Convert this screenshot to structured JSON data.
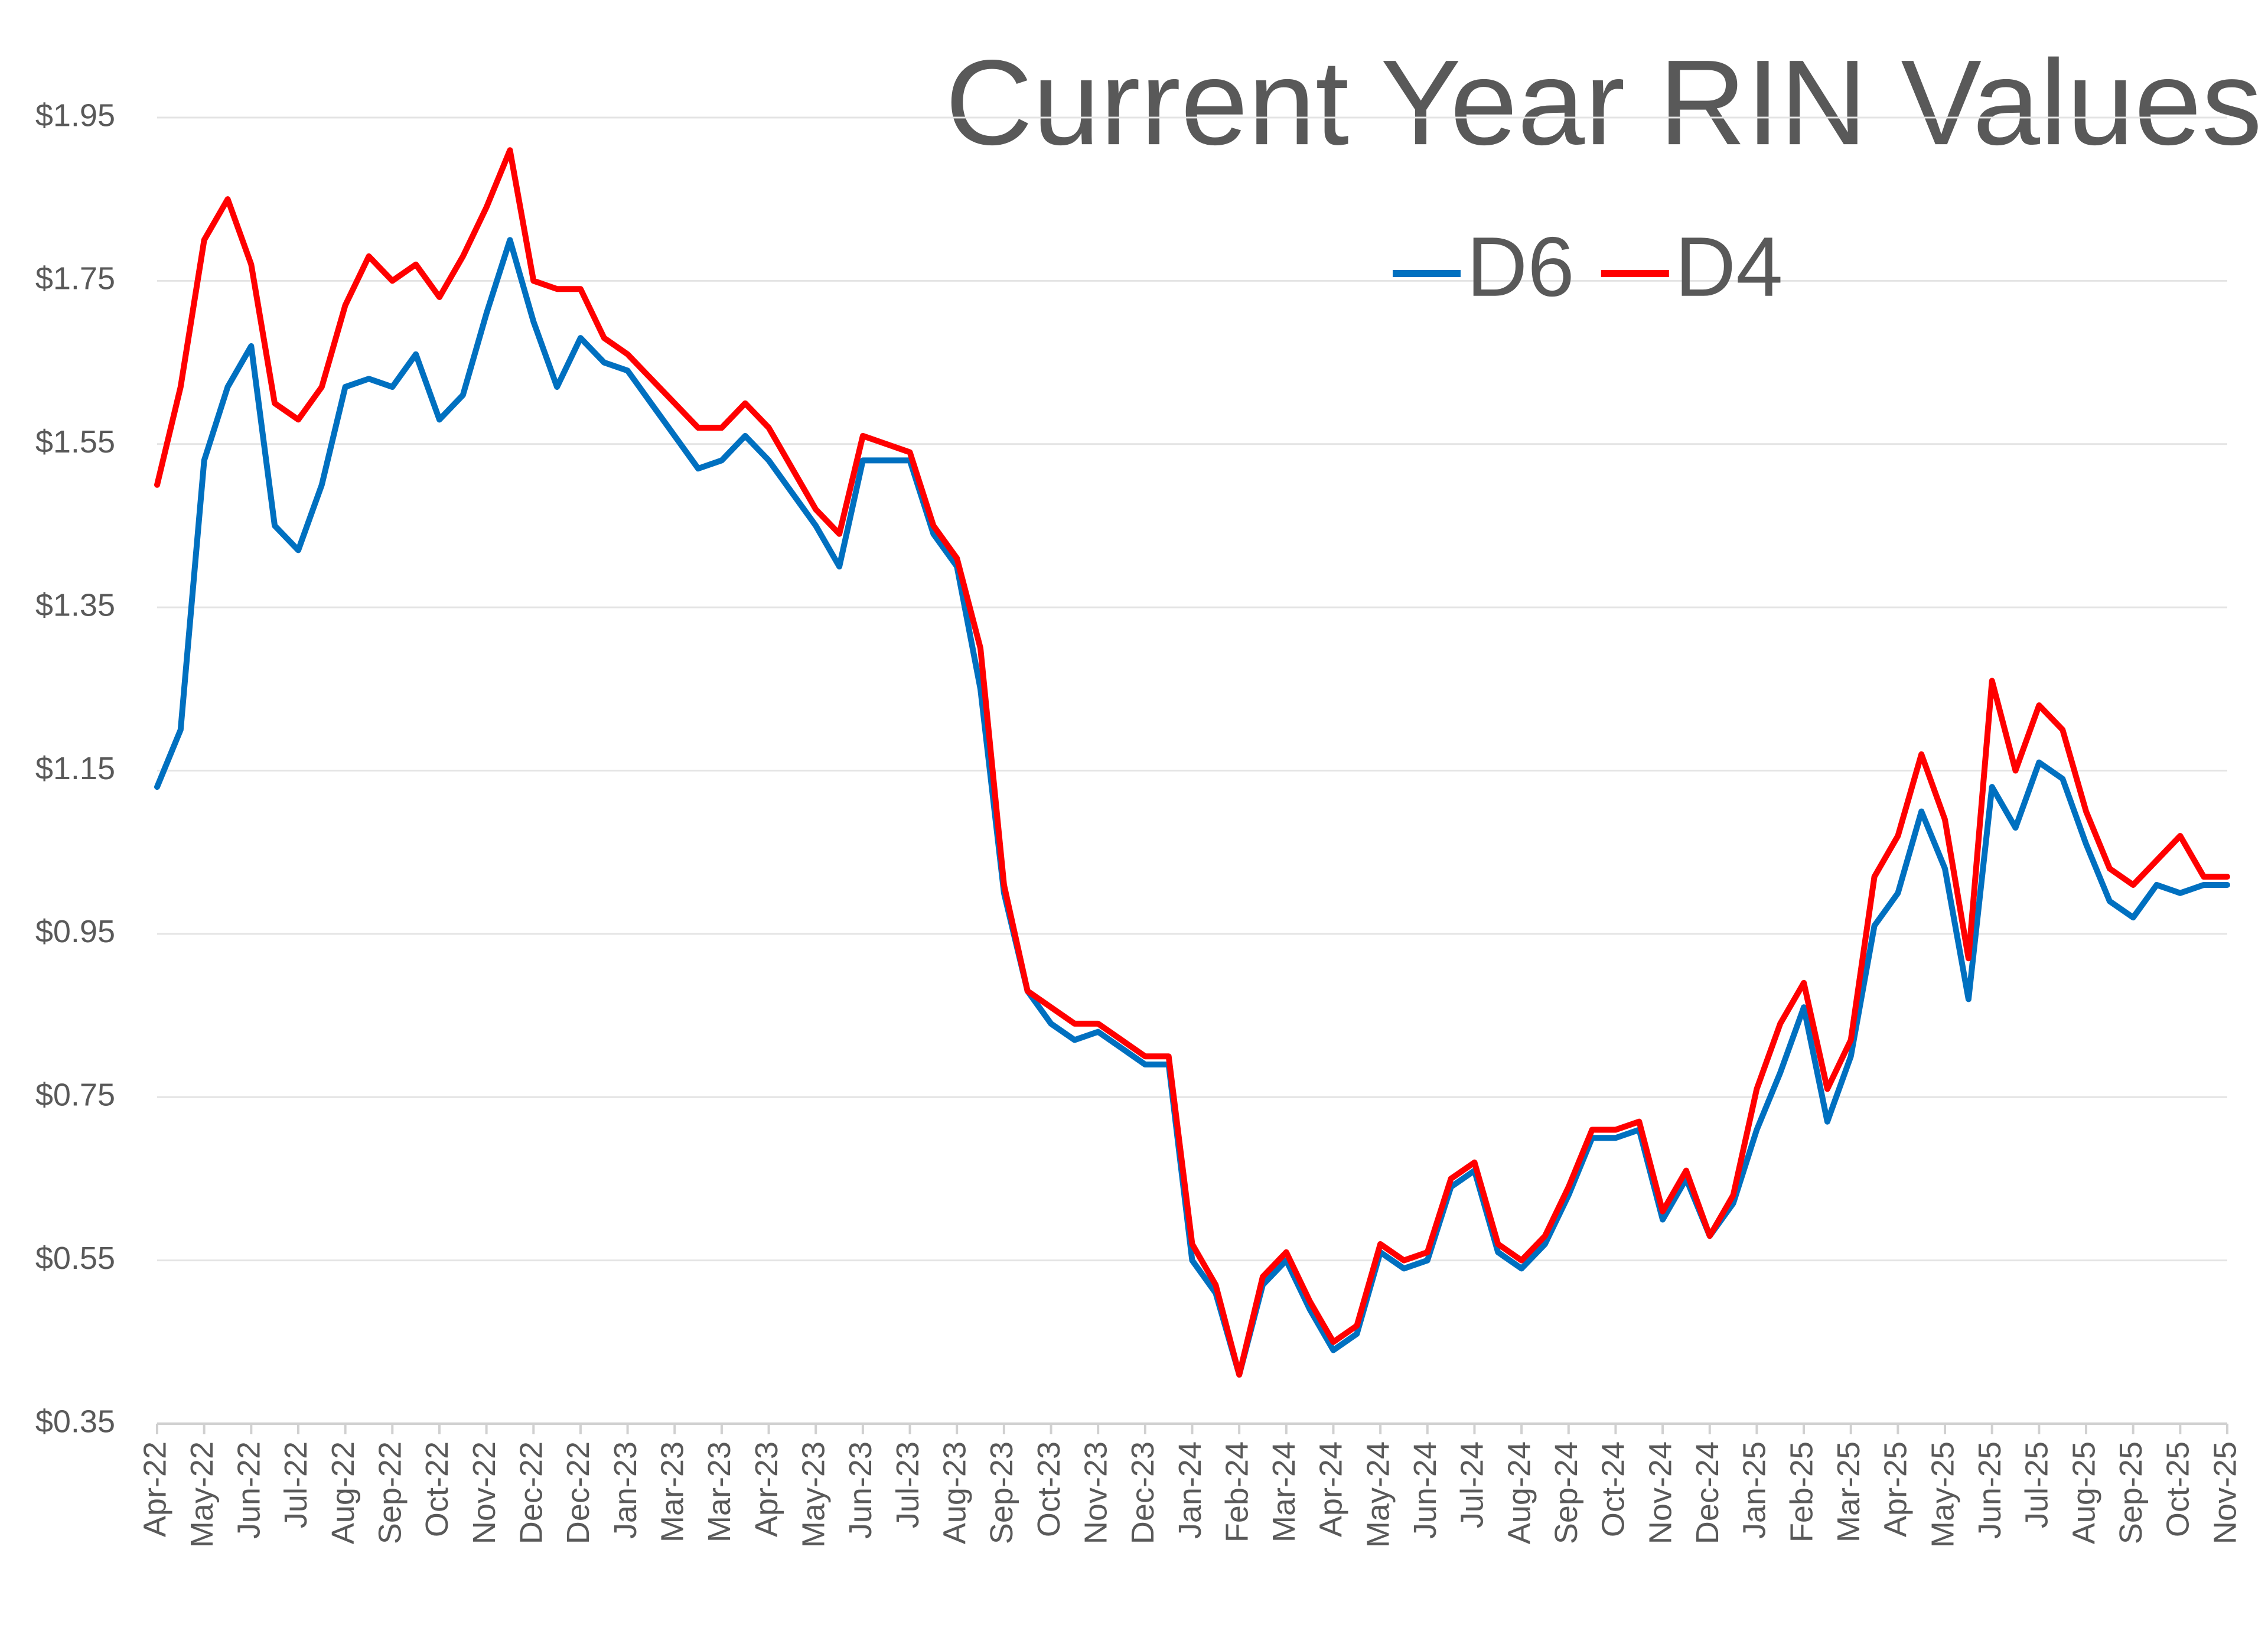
{
  "chart_data": {
    "type": "line",
    "title": "Current Year RIN Values",
    "categories": [
      "Apr-22",
      null,
      "May-22",
      null,
      "Jun-22",
      null,
      "Jul-22",
      null,
      "Aug-22",
      null,
      "Sep-22",
      null,
      "Oct-22",
      null,
      "Nov-22",
      null,
      "Dec-22",
      null,
      "Dec-22",
      null,
      "Jan-23",
      null,
      "Mar-23",
      null,
      "Mar-23",
      null,
      "Apr-23",
      null,
      "May-23",
      null,
      "Jun-23",
      null,
      "Jul-23",
      null,
      "Aug-23",
      null,
      "Sep-23",
      null,
      "Oct-23",
      null,
      "Nov-23",
      null,
      "Dec-23",
      null,
      "Jan-24",
      null,
      "Feb-24",
      null,
      "Mar-24",
      null,
      "Apr-24",
      null,
      "May-24",
      null,
      "Jun-24",
      null,
      "Jul-24",
      null,
      "Aug-24",
      null,
      "Sep-24",
      null,
      "Oct-24",
      null,
      "Nov-24",
      null,
      "Dec-24",
      null,
      "Jan-25",
      null,
      "Feb-25",
      null,
      "Mar-25",
      null,
      "Apr-25",
      null,
      "May-25",
      null,
      "Jun-25",
      null,
      "Jul-25",
      null,
      "Aug-25",
      null,
      "Sep-25",
      null,
      "Oct-25",
      null,
      "Nov-25"
    ],
    "series": [
      {
        "name": "D6",
        "color": "#0070c0",
        "values": [
          1.13,
          1.2,
          1.53,
          1.62,
          1.67,
          1.45,
          1.42,
          1.5,
          1.62,
          1.63,
          1.62,
          1.66,
          1.58,
          1.61,
          1.71,
          1.8,
          1.7,
          1.62,
          1.68,
          1.65,
          1.64,
          1.6,
          1.56,
          1.52,
          1.53,
          1.56,
          1.53,
          1.49,
          1.45,
          1.4,
          1.53,
          1.53,
          1.53,
          1.44,
          1.4,
          1.25,
          1.0,
          0.88,
          0.84,
          0.82,
          0.83,
          0.81,
          0.79,
          0.79,
          0.55,
          0.51,
          0.41,
          0.52,
          0.55,
          0.49,
          0.44,
          0.46,
          0.56,
          0.54,
          0.55,
          0.64,
          0.66,
          0.56,
          0.54,
          0.57,
          0.63,
          0.7,
          0.7,
          0.71,
          0.6,
          0.65,
          0.58,
          0.62,
          0.71,
          0.78,
          0.86,
          0.72,
          0.8,
          0.96,
          1.0,
          1.1,
          1.03,
          0.87,
          1.13,
          1.08,
          1.16,
          1.14,
          1.06,
          0.99,
          0.97,
          1.01,
          1.0,
          1.01,
          1.01
        ]
      },
      {
        "name": "D4",
        "color": "#ff0000",
        "values": [
          1.5,
          1.62,
          1.8,
          1.85,
          1.77,
          1.6,
          1.58,
          1.62,
          1.72,
          1.78,
          1.75,
          1.77,
          1.73,
          1.78,
          1.84,
          1.91,
          1.75,
          1.74,
          1.74,
          1.68,
          1.66,
          1.63,
          1.6,
          1.57,
          1.57,
          1.6,
          1.57,
          1.52,
          1.47,
          1.44,
          1.56,
          1.55,
          1.54,
          1.45,
          1.41,
          1.3,
          1.01,
          0.88,
          0.86,
          0.84,
          0.84,
          0.82,
          0.8,
          0.8,
          0.57,
          0.52,
          0.41,
          0.53,
          0.56,
          0.5,
          0.45,
          0.47,
          0.57,
          0.55,
          0.56,
          0.65,
          0.67,
          0.57,
          0.55,
          0.58,
          0.64,
          0.71,
          0.71,
          0.72,
          0.61,
          0.66,
          0.58,
          0.63,
          0.76,
          0.84,
          0.89,
          0.76,
          0.82,
          1.02,
          1.07,
          1.17,
          1.09,
          0.92,
          1.26,
          1.15,
          1.23,
          1.2,
          1.1,
          1.03,
          1.01,
          1.04,
          1.07,
          1.02,
          1.02
        ]
      }
    ],
    "ylim": [
      0.35,
      1.95
    ],
    "yticks": [
      {
        "value": 0.35,
        "label": "$0.35"
      },
      {
        "value": 0.55,
        "label": "$0.55"
      },
      {
        "value": 0.75,
        "label": "$0.75"
      },
      {
        "value": 0.95,
        "label": "$0.95"
      },
      {
        "value": 1.15,
        "label": "$1.15"
      },
      {
        "value": 1.35,
        "label": "$1.35"
      },
      {
        "value": 1.55,
        "label": "$1.55"
      },
      {
        "value": 1.75,
        "label": "$1.75"
      },
      {
        "value": 1.95,
        "label": "$1.95"
      }
    ],
    "grid": true,
    "legend": "top"
  }
}
